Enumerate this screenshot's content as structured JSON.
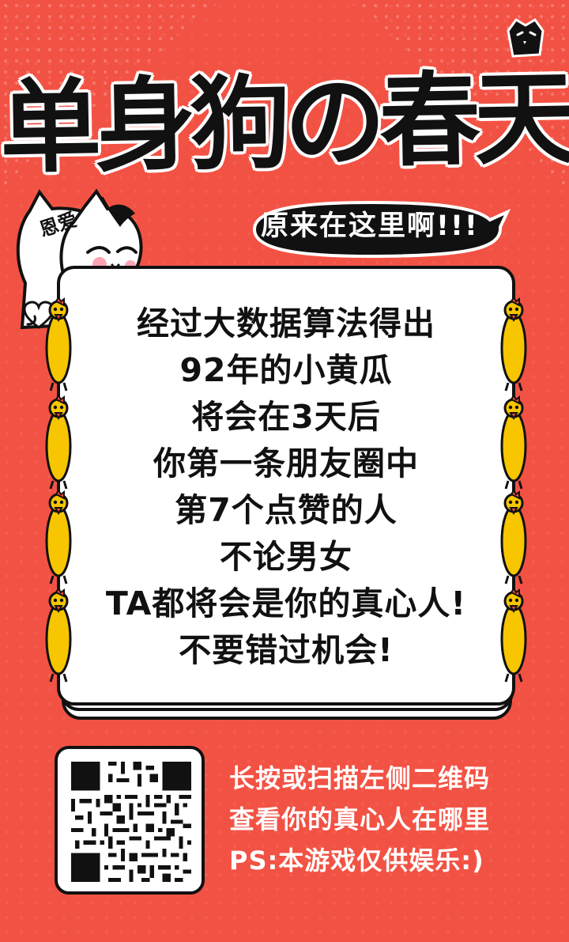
{
  "title": "单身狗の春天",
  "subtitle": "原来在这里啊!!!",
  "cat_label": "恩爱",
  "message_lines": [
    "经过大数据算法得出",
    "92年的小黄瓜",
    "将会在3天后",
    "你第一条朋友圈中",
    "第7个点赞的人",
    "不论男女",
    "TA都将会是你的真心人!",
    "不要错过机会!"
  ],
  "footer_lines": [
    "长按或扫描左侧二维码",
    "查看你的真心人在哪里",
    "PS:本游戏仅供娱乐:)"
  ],
  "colors": {
    "background": "#f25244",
    "text_dark": "#111111",
    "text_light": "#ffffff",
    "chicken_yellow": "#f7c600",
    "chicken_red": "#ef4a3f"
  },
  "icons": {
    "dog": "dog-icon",
    "cat": "cat-icon",
    "heart": "heart-icon",
    "chicken": "rubber-chicken-icon",
    "qr": "qr-code-icon"
  }
}
